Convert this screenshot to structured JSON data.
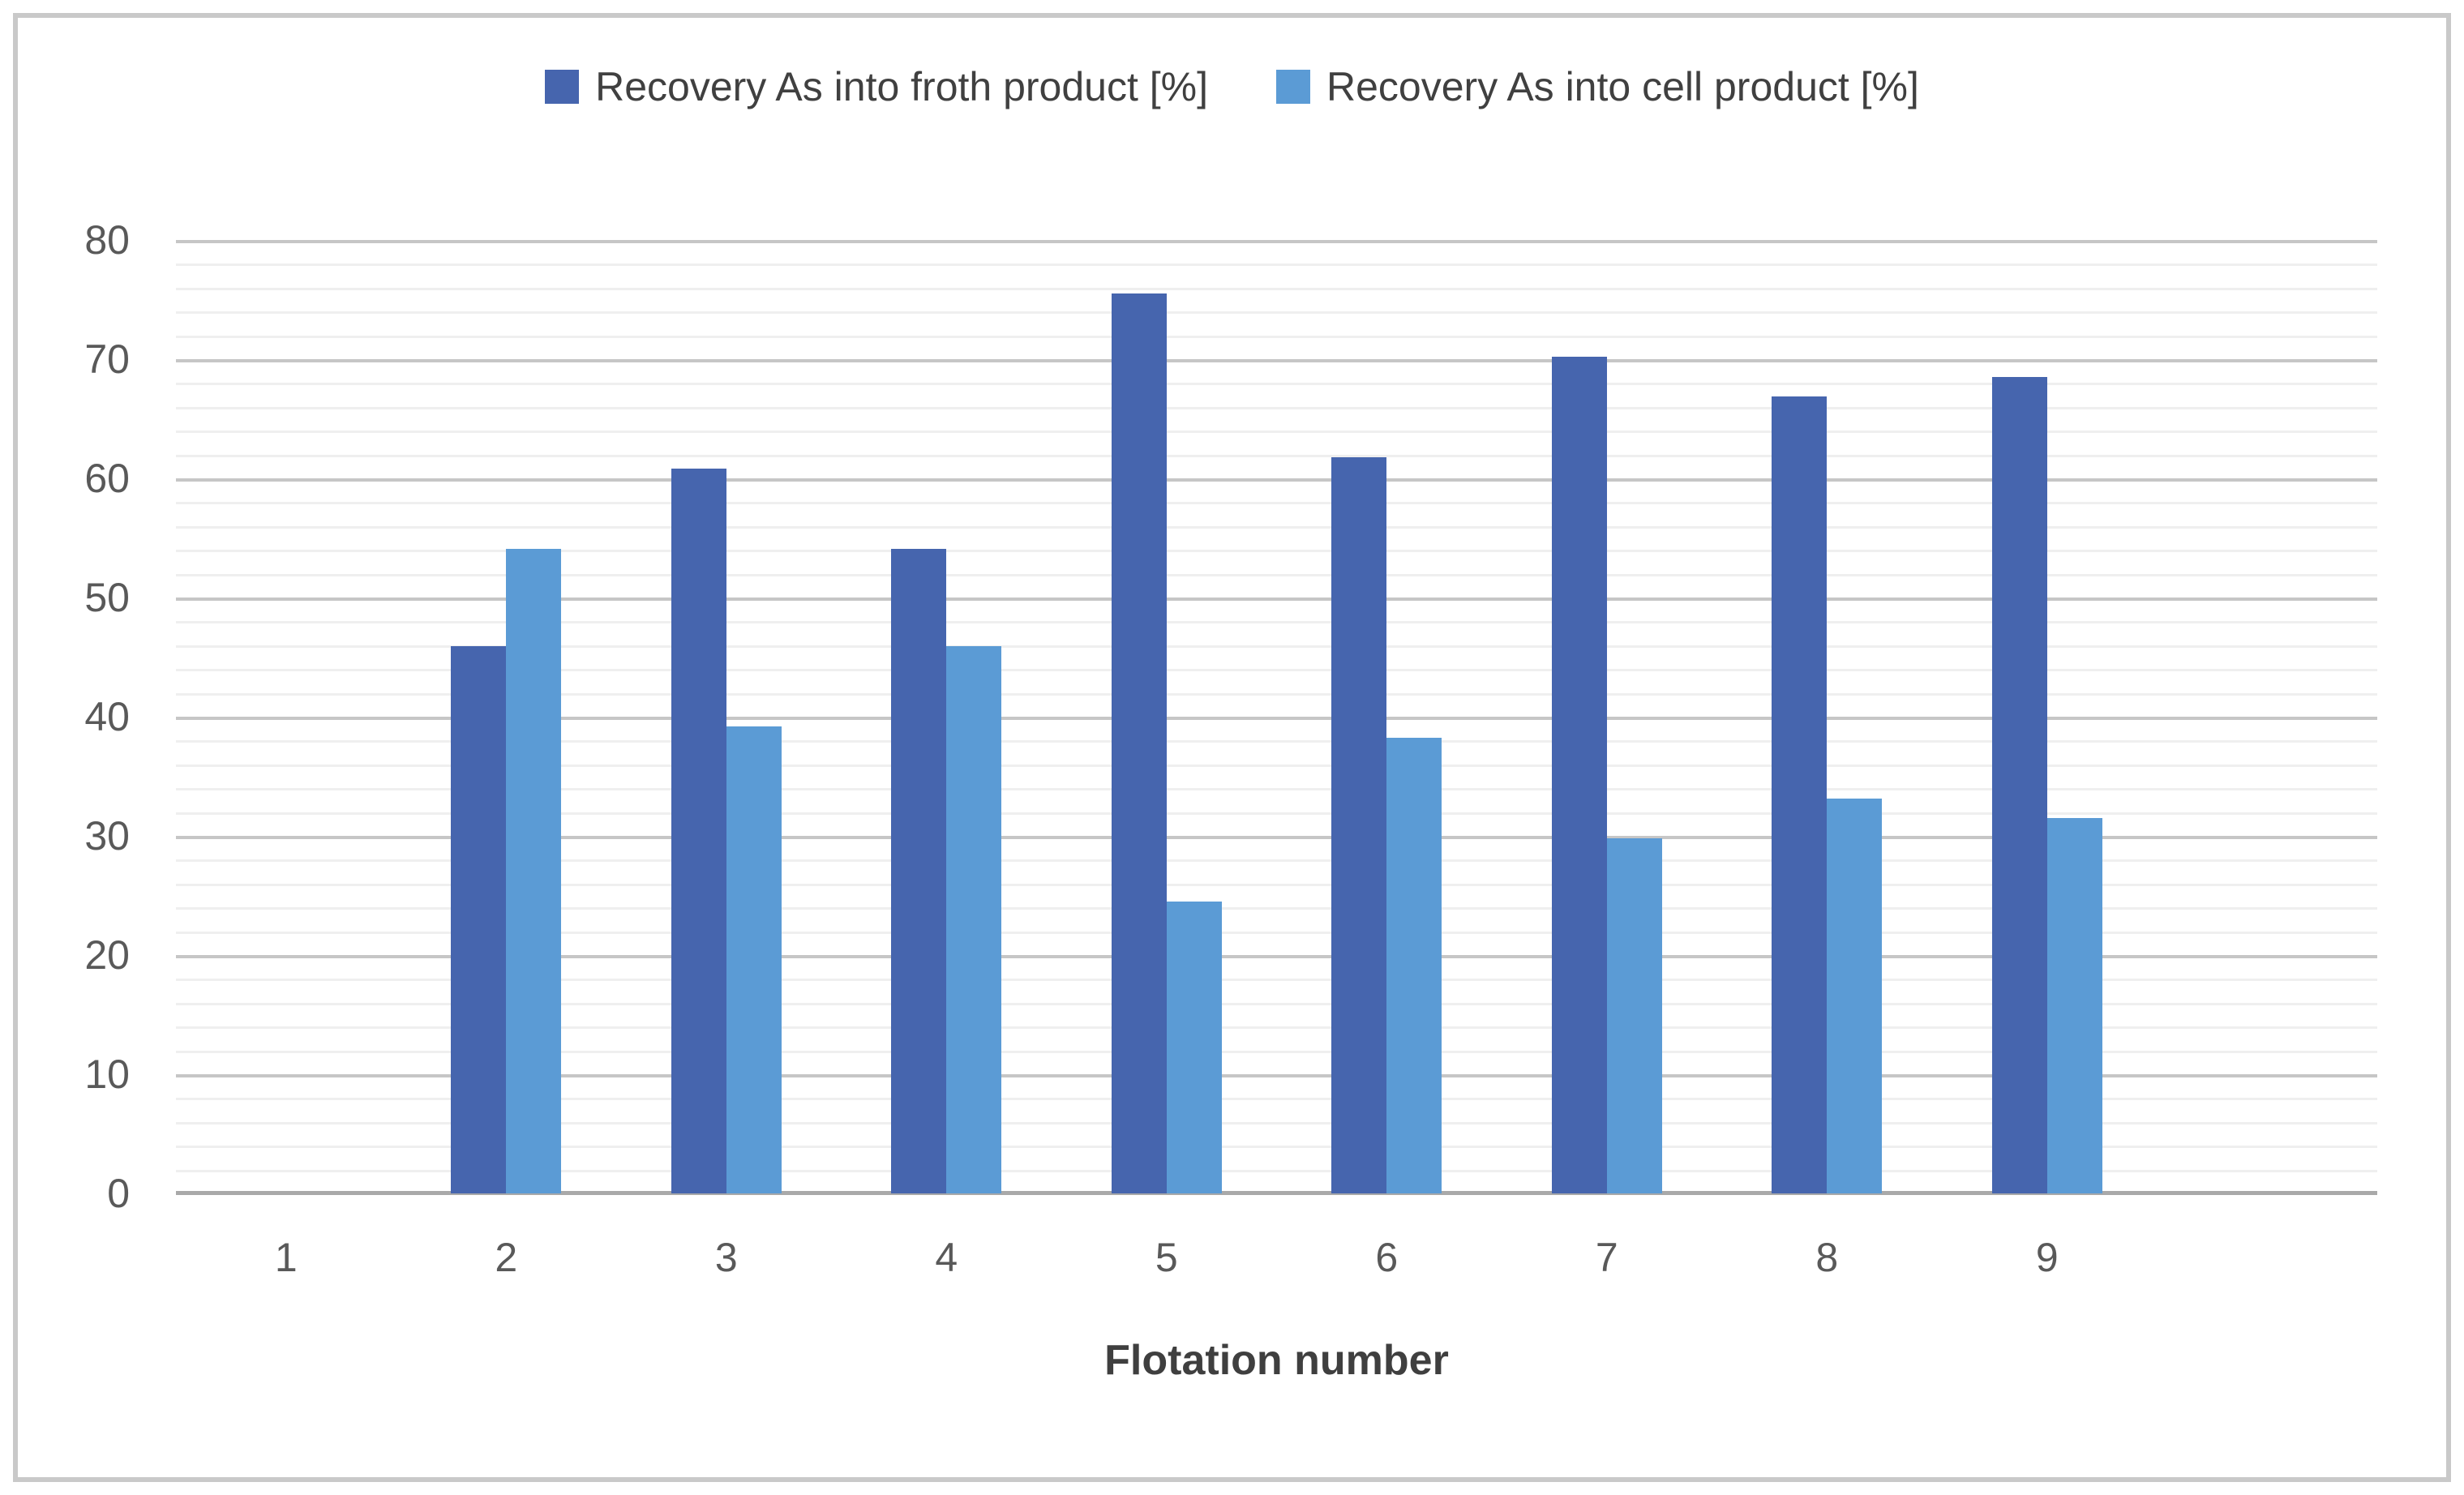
{
  "chart_data": {
    "type": "bar",
    "title": "",
    "categories": [
      "1",
      "2",
      "3",
      "4",
      "5",
      "6",
      "7",
      "8",
      "9"
    ],
    "series": [
      {
        "name": "Recovery As into froth product [%]",
        "color": "#4665ae",
        "values": [
          null,
          45.9,
          60.8,
          54.1,
          75.5,
          61.8,
          70.2,
          66.9,
          68.5
        ]
      },
      {
        "name": "Recovery As into cell product [%]",
        "color": "#5b9bd5",
        "values": [
          null,
          54.1,
          39.2,
          45.9,
          24.5,
          38.2,
          29.8,
          33.1,
          31.5
        ]
      }
    ],
    "xlabel": "Flotation number",
    "ylabel": "",
    "ylim": [
      0,
      80
    ],
    "y_major_step": 10,
    "y_minor_step": 2,
    "y_tick_labels": [
      "0",
      "10",
      "20",
      "30",
      "40",
      "50",
      "60",
      "70",
      "80"
    ],
    "legend_position": "top-center",
    "grid": true,
    "trailing_empty_slot": true
  },
  "colors": {
    "major_gridline": "#c6c6c6",
    "minor_gridline": "#efefef",
    "axis_line": "#a9a9a9",
    "tick_text": "#595959",
    "legend_text": "#404040",
    "frame_border": "#c9c9c9",
    "background": "#ffffff"
  }
}
